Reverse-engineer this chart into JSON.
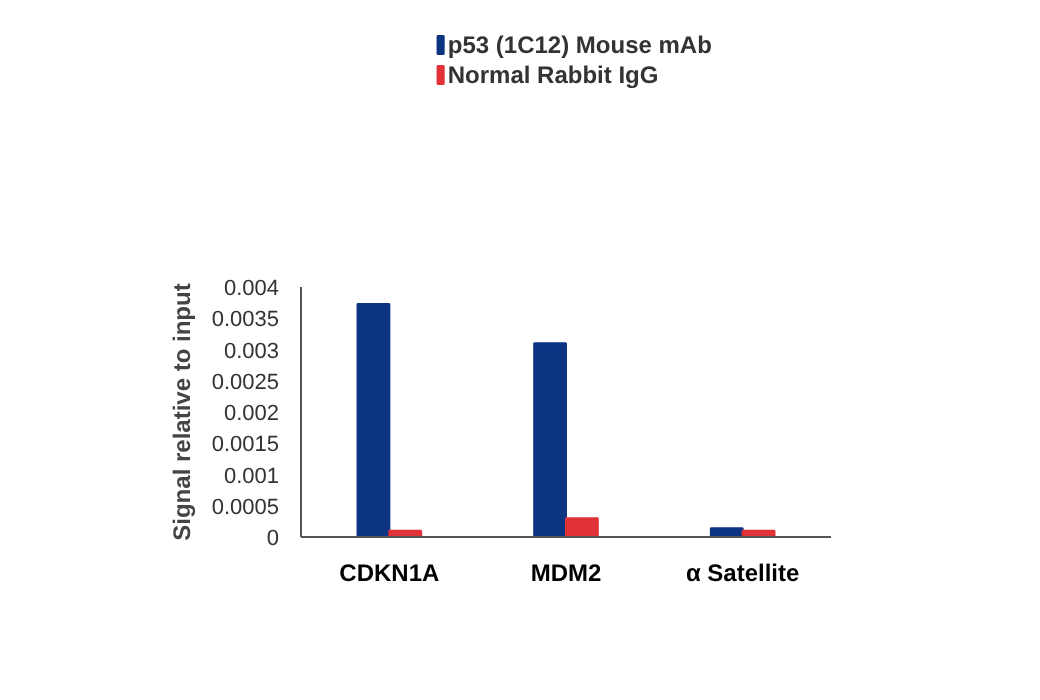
{
  "chart_data": {
    "type": "bar",
    "ylabel": "Signal relative to input",
    "categories": [
      "CDKN1A",
      "MDM2",
      "α Satellite"
    ],
    "series": [
      {
        "name": "p53 (1C12) Mouse mAb",
        "color": "#0d3383",
        "values": [
          0.00373,
          0.0031,
          0.00014
        ]
      },
      {
        "name": "Normal Rabbit IgG",
        "color": "#e03237",
        "values": [
          0.0001,
          0.0003,
          0.0001
        ]
      }
    ],
    "ylim": [
      0,
      0.004
    ],
    "yticks": [
      0,
      0.0005,
      0.001,
      0.0015,
      0.002,
      0.0025,
      0.003,
      0.0035,
      0.004
    ],
    "grid": false,
    "legend": "top left"
  }
}
